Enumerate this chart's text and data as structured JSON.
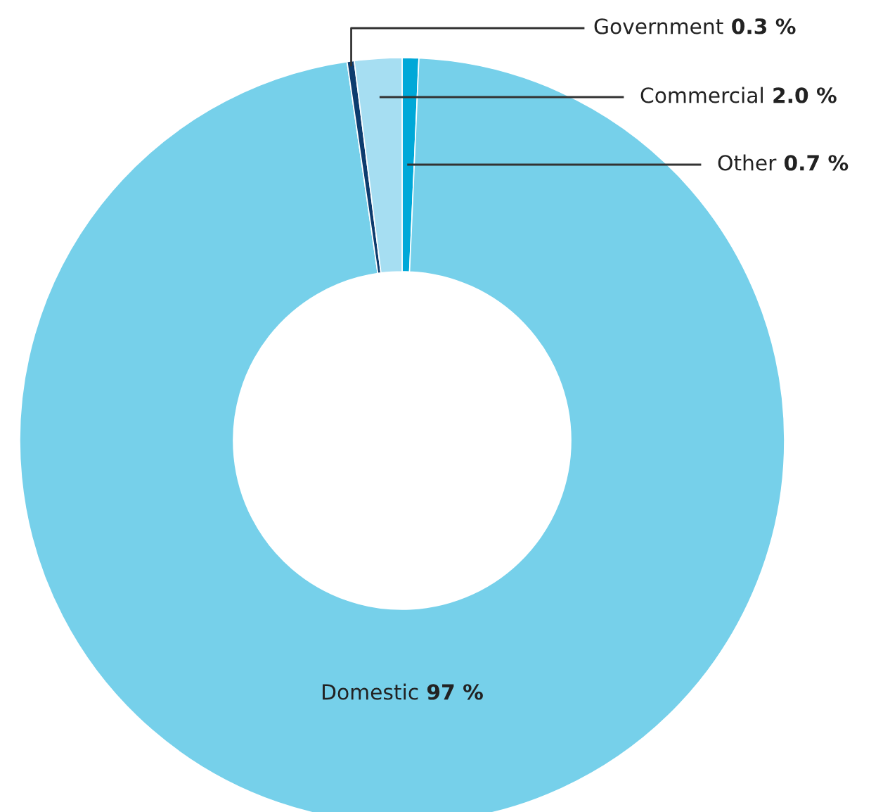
{
  "chart_data": {
    "type": "donut",
    "categories": [
      "Other",
      "Domestic",
      "Government",
      "Commercial"
    ],
    "values": [
      0.7,
      97,
      0.3,
      2.0
    ],
    "value_labels": [
      "0.7 %",
      "97 %",
      "0.3 %",
      "2.0 %"
    ],
    "colors": [
      "#00a8d8",
      "#76d0ea",
      "#0d3c6e",
      "#a6def2"
    ]
  }
}
